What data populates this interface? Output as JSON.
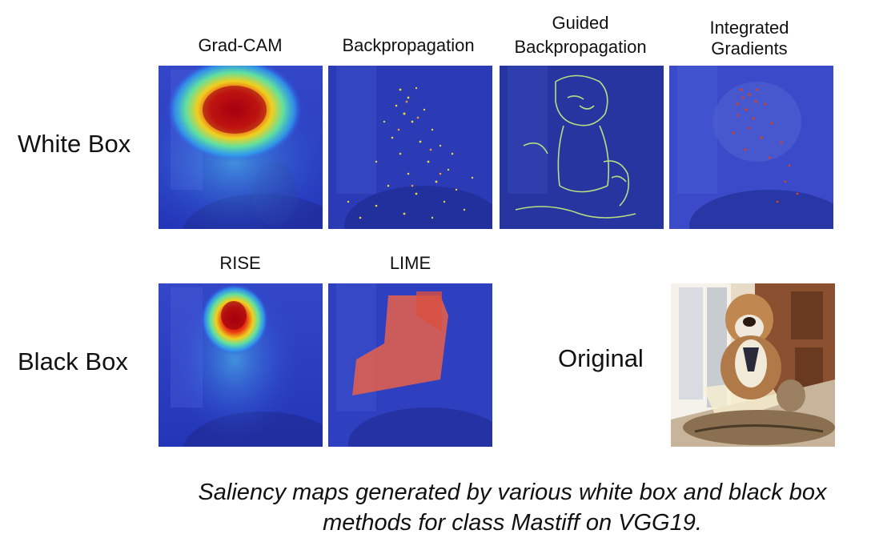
{
  "rows": {
    "white_box": "White Box",
    "black_box": "Black Box"
  },
  "columns": {
    "gradcam": "Grad-CAM",
    "backprop": "Backpropagation",
    "guided_line1": "Guided",
    "guided_line2": "Backpropagation",
    "ig_line1": "Integrated",
    "ig_line2": "Gradients",
    "rise": "RISE",
    "lime": "LIME"
  },
  "original_label": "Original",
  "caption": {
    "line1": "Saliency maps generated by various white box and black box",
    "line2": "methods for class Mastiff on VGG19."
  }
}
